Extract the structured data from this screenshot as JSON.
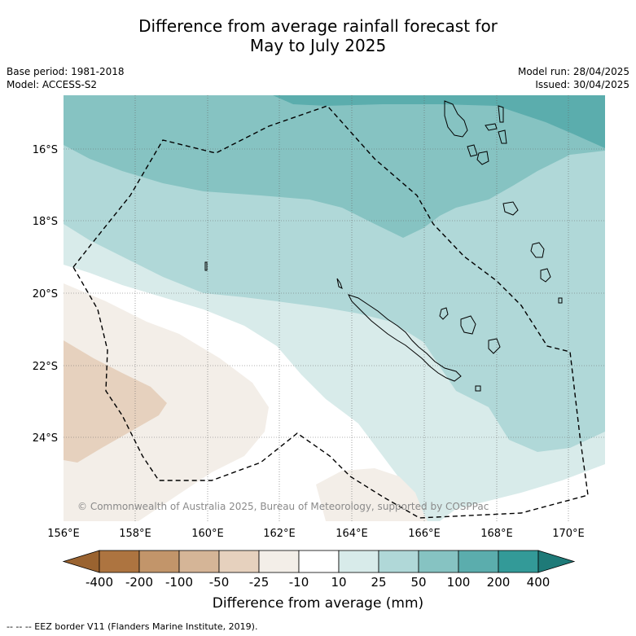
{
  "title_line1": "Difference from average rainfall forecast for",
  "title_line2": "May to July 2025",
  "base_period": "Base period: 1981-2018",
  "model": "Model: ACCESS-S2",
  "model_run": "Model run: 28/04/2025",
  "issued": "Issued: 30/04/2025",
  "copyright": "© Commonwealth of Australia 2025, Bureau of Meteorology, supported by COSPPac",
  "lon_ticks": [
    "156°E",
    "158°E",
    "160°E",
    "162°E",
    "164°E",
    "166°E",
    "168°E",
    "170°E"
  ],
  "lat_ticks": [
    "16°S",
    "18°S",
    "20°S",
    "22°S",
    "24°S"
  ],
  "colorbar": {
    "label": "Difference from average (mm)",
    "tick_labels": [
      "-400",
      "-200",
      "-100",
      "-50",
      "-25",
      "-10",
      "10",
      "25",
      "50",
      "100",
      "200",
      "400"
    ],
    "colors": [
      "#9a6330",
      "#ad7440",
      "#c2956a",
      "#d5b597",
      "#e6d1be",
      "#f3eee8",
      "#ffffff",
      "#d8ebea",
      "#b0d8d8",
      "#86c3c2",
      "#5badad",
      "#339a98",
      "#1e7a78"
    ]
  },
  "footnote": "-- -- -- EEZ border V11 (Flanders Marine Institute, 2019)."
}
